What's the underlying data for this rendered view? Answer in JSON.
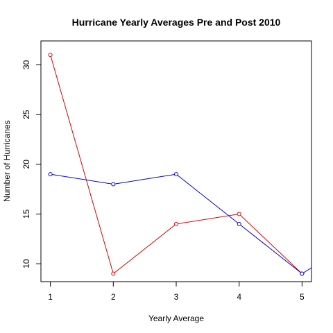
{
  "chart_data": {
    "type": "line",
    "title": "Hurricane Yearly Averages Pre and Post 2010",
    "xlabel": "Yearly Average",
    "ylabel": "Number of Hurricanes",
    "xlim": [
      0.85,
      5.15
    ],
    "ylim": [
      8.2,
      32.4
    ],
    "xticks": [
      1,
      2,
      3,
      4,
      5
    ],
    "yticks": [
      10,
      15,
      20,
      25,
      30
    ],
    "grid": false,
    "legend": "none",
    "series": [
      {
        "color": "#dd0000",
        "x": [
          1,
          2,
          3,
          4,
          5
        ],
        "values": [
          31,
          9,
          14,
          15,
          9
        ],
        "markers": [
          1,
          2,
          3,
          4,
          5
        ]
      },
      {
        "color": "#0000dd",
        "x": [
          1,
          2,
          3,
          4,
          5,
          5.15
        ],
        "values": [
          19,
          18,
          19,
          14,
          9,
          9.6
        ],
        "markers": [
          1,
          2,
          3,
          4,
          5
        ]
      }
    ]
  }
}
